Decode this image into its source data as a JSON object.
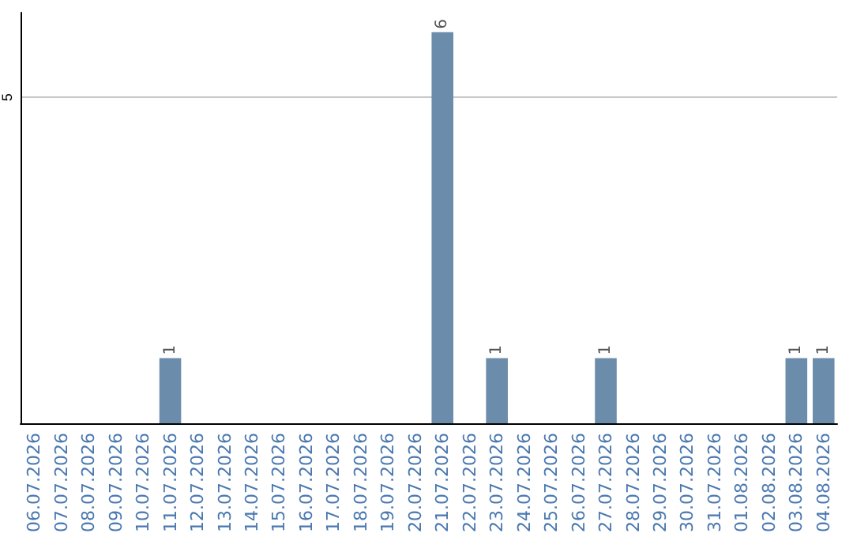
{
  "chart_data": {
    "type": "bar",
    "categories": [
      "06.07.2026",
      "07.07.2026",
      "08.07.2026",
      "09.07.2026",
      "10.07.2026",
      "11.07.2026",
      "12.07.2026",
      "13.07.2026",
      "14.07.2026",
      "15.07.2026",
      "16.07.2026",
      "17.07.2026",
      "18.07.2026",
      "19.07.2026",
      "20.07.2026",
      "21.07.2026",
      "22.07.2026",
      "23.07.2026",
      "24.07.2026",
      "25.07.2026",
      "26.07.2026",
      "27.07.2026",
      "28.07.2026",
      "29.07.2026",
      "30.07.2026",
      "31.07.2026",
      "01.08.2026",
      "02.08.2026",
      "03.08.2026",
      "04.08.2026"
    ],
    "values": [
      0,
      0,
      0,
      0,
      0,
      1,
      0,
      0,
      0,
      0,
      0,
      0,
      0,
      0,
      0,
      6,
      0,
      1,
      0,
      0,
      0,
      1,
      0,
      0,
      0,
      0,
      0,
      0,
      1,
      1
    ],
    "value_labels": [
      null,
      null,
      null,
      null,
      null,
      "1",
      null,
      null,
      null,
      null,
      null,
      null,
      null,
      null,
      null,
      "6",
      null,
      "1",
      null,
      null,
      null,
      "1",
      null,
      null,
      null,
      null,
      null,
      null,
      "1",
      "1"
    ],
    "color": "#6b8cab",
    "ylim": [
      0,
      6.3
    ],
    "yticks": [
      5
    ],
    "grid": "y"
  }
}
